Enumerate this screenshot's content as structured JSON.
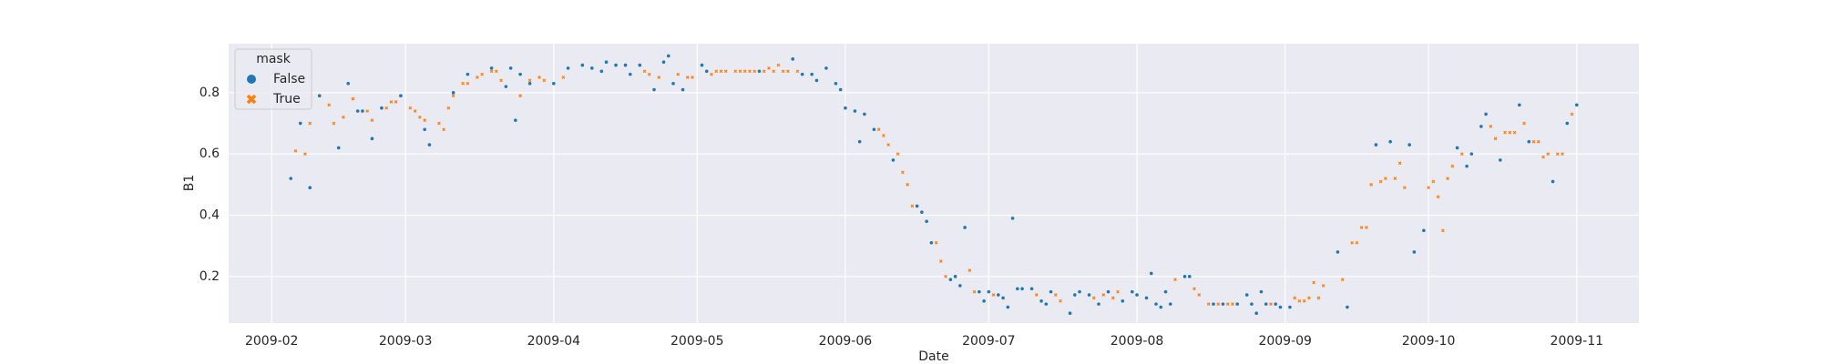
{
  "chart_data": {
    "type": "scatter",
    "x_label": "Date",
    "y_label": "B1",
    "legend_title": "mask",
    "legend": "upper left",
    "grid": true,
    "xlim": [
      "2009-01-23",
      "2009-11-14"
    ],
    "xticks": [
      {
        "value": "2009-02-01",
        "label": "2009-02"
      },
      {
        "value": "2009-03-01",
        "label": "2009-03"
      },
      {
        "value": "2009-04-01",
        "label": "2009-04"
      },
      {
        "value": "2009-05-01",
        "label": "2009-05"
      },
      {
        "value": "2009-06-01",
        "label": "2009-06"
      },
      {
        "value": "2009-07-01",
        "label": "2009-07"
      },
      {
        "value": "2009-08-01",
        "label": "2009-08"
      },
      {
        "value": "2009-09-01",
        "label": "2009-09"
      },
      {
        "value": "2009-10-01",
        "label": "2009-10"
      },
      {
        "value": "2009-11-01",
        "label": "2009-11"
      }
    ],
    "ylim": [
      0.048,
      0.96
    ],
    "yticks": [
      0.2,
      0.4,
      0.6,
      0.8
    ],
    "series": [
      {
        "name": "False",
        "color": "#1f77b4",
        "marker": "circle",
        "x": [
          "2009-02-05",
          "2009-02-07",
          "2009-02-09",
          "2009-02-11",
          "2009-02-15",
          "2009-02-17",
          "2009-02-19",
          "2009-02-20",
          "2009-02-22",
          "2009-02-24",
          "2009-02-28",
          "2009-03-05",
          "2009-03-06",
          "2009-03-11",
          "2009-03-14",
          "2009-03-19",
          "2009-03-22",
          "2009-03-23",
          "2009-03-24",
          "2009-03-25",
          "2009-03-27",
          "2009-04-01",
          "2009-04-04",
          "2009-04-07",
          "2009-04-09",
          "2009-04-11",
          "2009-04-12",
          "2009-04-14",
          "2009-04-16",
          "2009-04-17",
          "2009-04-19",
          "2009-04-22",
          "2009-04-24",
          "2009-04-25",
          "2009-04-26",
          "2009-04-28",
          "2009-05-02",
          "2009-05-03",
          "2009-05-14",
          "2009-05-21",
          "2009-05-23",
          "2009-05-25",
          "2009-05-26",
          "2009-05-28",
          "2009-05-30",
          "2009-05-31",
          "2009-06-01",
          "2009-06-03",
          "2009-06-04",
          "2009-06-05",
          "2009-06-07",
          "2009-06-11",
          "2009-06-16",
          "2009-06-17",
          "2009-06-18",
          "2009-06-19",
          "2009-06-23",
          "2009-06-24",
          "2009-06-25",
          "2009-06-26",
          "2009-06-29",
          "2009-06-30",
          "2009-07-01",
          "2009-07-03",
          "2009-07-04",
          "2009-07-05",
          "2009-07-06",
          "2009-07-07",
          "2009-07-08",
          "2009-07-10",
          "2009-07-12",
          "2009-07-13",
          "2009-07-14",
          "2009-07-18",
          "2009-07-19",
          "2009-07-20",
          "2009-07-22",
          "2009-07-24",
          "2009-07-26",
          "2009-07-29",
          "2009-07-31",
          "2009-08-01",
          "2009-08-03",
          "2009-08-04",
          "2009-08-05",
          "2009-08-06",
          "2009-08-07",
          "2009-08-08",
          "2009-08-11",
          "2009-08-12",
          "2009-08-17",
          "2009-08-19",
          "2009-08-22",
          "2009-08-24",
          "2009-08-25",
          "2009-08-26",
          "2009-08-27",
          "2009-08-28",
          "2009-08-30",
          "2009-08-31",
          "2009-09-02",
          "2009-09-12",
          "2009-09-14",
          "2009-09-20",
          "2009-09-23",
          "2009-09-27",
          "2009-09-28",
          "2009-09-30",
          "2009-10-07",
          "2009-10-09",
          "2009-10-10",
          "2009-10-12",
          "2009-10-13",
          "2009-10-16",
          "2009-10-20",
          "2009-10-22",
          "2009-10-27",
          "2009-10-30",
          "2009-11-01"
        ],
        "values": [
          0.52,
          0.7,
          0.49,
          0.79,
          0.62,
          0.83,
          0.74,
          0.74,
          0.65,
          0.75,
          0.79,
          0.68,
          0.63,
          0.8,
          0.86,
          0.88,
          0.82,
          0.88,
          0.71,
          0.86,
          0.83,
          0.83,
          0.88,
          0.89,
          0.88,
          0.87,
          0.9,
          0.89,
          0.89,
          0.86,
          0.89,
          0.81,
          0.9,
          0.92,
          0.83,
          0.81,
          0.89,
          0.87,
          0.87,
          0.91,
          0.86,
          0.86,
          0.84,
          0.88,
          0.83,
          0.81,
          0.75,
          0.74,
          0.64,
          0.73,
          0.68,
          0.58,
          0.43,
          0.41,
          0.38,
          0.31,
          0.19,
          0.2,
          0.17,
          0.36,
          0.15,
          0.12,
          0.15,
          0.14,
          0.13,
          0.1,
          0.39,
          0.16,
          0.16,
          0.16,
          0.12,
          0.11,
          0.15,
          0.08,
          0.14,
          0.15,
          0.14,
          0.11,
          0.15,
          0.12,
          0.15,
          0.14,
          0.13,
          0.21,
          0.11,
          0.1,
          0.15,
          0.11,
          0.2,
          0.2,
          0.11,
          0.11,
          0.11,
          0.14,
          0.11,
          0.08,
          0.15,
          0.11,
          0.11,
          0.1,
          0.1,
          0.28,
          0.1,
          0.63,
          0.64,
          0.63,
          0.28,
          0.35,
          0.62,
          0.56,
          0.6,
          0.69,
          0.73,
          0.58,
          0.76,
          0.64,
          0.51,
          0.7,
          0.76
        ]
      },
      {
        "name": "True",
        "color": "#ff7f0e",
        "marker": "x",
        "x": [
          "2009-02-06",
          "2009-02-08",
          "2009-02-09",
          "2009-02-13",
          "2009-02-14",
          "2009-02-16",
          "2009-02-18",
          "2009-02-21",
          "2009-02-22",
          "2009-02-25",
          "2009-02-26",
          "2009-02-27",
          "2009-03-02",
          "2009-03-03",
          "2009-03-04",
          "2009-03-05",
          "2009-03-08",
          "2009-03-09",
          "2009-03-10",
          "2009-03-11",
          "2009-03-13",
          "2009-03-14",
          "2009-03-16",
          "2009-03-17",
          "2009-03-19",
          "2009-03-20",
          "2009-03-21",
          "2009-03-25",
          "2009-03-27",
          "2009-03-29",
          "2009-03-30",
          "2009-04-03",
          "2009-04-20",
          "2009-04-21",
          "2009-04-23",
          "2009-04-27",
          "2009-04-29",
          "2009-04-30",
          "2009-05-04",
          "2009-05-05",
          "2009-05-06",
          "2009-05-07",
          "2009-05-09",
          "2009-05-10",
          "2009-05-11",
          "2009-05-12",
          "2009-05-13",
          "2009-05-15",
          "2009-05-16",
          "2009-05-17",
          "2009-05-18",
          "2009-05-19",
          "2009-05-20",
          "2009-05-22",
          "2009-06-08",
          "2009-06-09",
          "2009-06-10",
          "2009-06-12",
          "2009-06-13",
          "2009-06-14",
          "2009-06-15",
          "2009-06-20",
          "2009-06-21",
          "2009-06-22",
          "2009-06-27",
          "2009-06-28",
          "2009-07-02",
          "2009-07-11",
          "2009-07-15",
          "2009-07-16",
          "2009-07-23",
          "2009-07-25",
          "2009-07-27",
          "2009-07-28",
          "2009-08-09",
          "2009-08-13",
          "2009-08-14",
          "2009-08-16",
          "2009-08-18",
          "2009-08-20",
          "2009-08-21",
          "2009-08-29",
          "2009-09-03",
          "2009-09-04",
          "2009-09-05",
          "2009-09-06",
          "2009-09-07",
          "2009-09-08",
          "2009-09-09",
          "2009-09-13",
          "2009-09-15",
          "2009-09-16",
          "2009-09-17",
          "2009-09-18",
          "2009-09-19",
          "2009-09-21",
          "2009-09-22",
          "2009-09-24",
          "2009-09-25",
          "2009-09-26",
          "2009-10-01",
          "2009-10-02",
          "2009-10-03",
          "2009-10-04",
          "2009-10-05",
          "2009-10-06",
          "2009-10-08",
          "2009-10-14",
          "2009-10-15",
          "2009-10-17",
          "2009-10-18",
          "2009-10-19",
          "2009-10-21",
          "2009-10-23",
          "2009-10-24",
          "2009-10-25",
          "2009-10-26",
          "2009-10-28",
          "2009-10-29",
          "2009-10-31"
        ],
        "values": [
          0.61,
          0.6,
          0.7,
          0.76,
          0.7,
          0.72,
          0.78,
          0.74,
          0.71,
          0.75,
          0.77,
          0.77,
          0.75,
          0.74,
          0.72,
          0.71,
          0.7,
          0.68,
          0.75,
          0.79,
          0.83,
          0.83,
          0.85,
          0.86,
          0.87,
          0.87,
          0.84,
          0.79,
          0.84,
          0.85,
          0.84,
          0.85,
          0.87,
          0.86,
          0.85,
          0.86,
          0.85,
          0.85,
          0.86,
          0.87,
          0.87,
          0.87,
          0.87,
          0.87,
          0.87,
          0.87,
          0.87,
          0.87,
          0.88,
          0.87,
          0.89,
          0.87,
          0.87,
          0.87,
          0.68,
          0.66,
          0.63,
          0.6,
          0.54,
          0.5,
          0.43,
          0.31,
          0.25,
          0.2,
          0.22,
          0.15,
          0.14,
          0.14,
          0.14,
          0.12,
          0.13,
          0.14,
          0.13,
          0.15,
          0.19,
          0.16,
          0.14,
          0.11,
          0.11,
          0.11,
          0.11,
          0.11,
          0.13,
          0.12,
          0.12,
          0.13,
          0.18,
          0.13,
          0.17,
          0.19,
          0.31,
          0.31,
          0.36,
          0.36,
          0.5,
          0.51,
          0.52,
          0.52,
          0.57,
          0.49,
          0.49,
          0.51,
          0.46,
          0.35,
          0.52,
          0.56,
          0.6,
          0.69,
          0.65,
          0.67,
          0.67,
          0.67,
          0.7,
          0.64,
          0.64,
          0.59,
          0.6,
          0.6,
          0.6,
          0.73
        ]
      }
    ]
  }
}
